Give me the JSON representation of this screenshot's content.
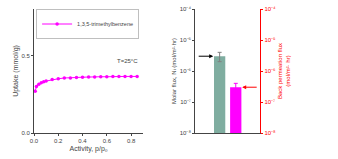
{
  "chart_data": [
    {
      "type": "line",
      "x": [
        0.01,
        0.02,
        0.04,
        0.06,
        0.08,
        0.1,
        0.15,
        0.2,
        0.25,
        0.3,
        0.35,
        0.4,
        0.45,
        0.5,
        0.55,
        0.6,
        0.65,
        0.7,
        0.75,
        0.8,
        0.85
      ],
      "series": [
        {
          "name": "1,3,5-trimethylbenzene",
          "color": "#FF00FF",
          "marker": "circle",
          "values": [
            0.27,
            0.3,
            0.315,
            0.325,
            0.33,
            0.335,
            0.345,
            0.35,
            0.355,
            0.355,
            0.358,
            0.36,
            0.362,
            0.362,
            0.363,
            0.363,
            0.365,
            0.365,
            0.365,
            0.365,
            0.365
          ]
        }
      ],
      "xlabel": "Activity, p/p₀",
      "ylabel": "Uptake (mmol/g)",
      "xlim": [
        0,
        0.9
      ],
      "ylim": [
        0.0,
        0.8
      ],
      "xticks": [
        {
          "value": 0,
          "label": "0.0"
        },
        0.2,
        0.4,
        0.6,
        0.8
      ],
      "yticks": [
        {
          "value": 0,
          "label": "0.0"
        },
        0.5
      ],
      "legend": "upper left",
      "grid": false,
      "annotations": [
        "T=25°C"
      ]
    },
    {
      "type": "bar",
      "categories": [
        null,
        null
      ],
      "series": [
        {
          "color": "#7fada0",
          "values": [
            3e-06,
            null
          ],
          "errors": [
            1e-06,
            null
          ]
        },
        {
          "color": "#FF00FF",
          "values": [
            null,
            3e-07
          ],
          "errors": [
            null,
            1e-07
          ],
          "axis": "y2"
        }
      ],
      "ylabel": "Molar flux, Nᵢ (mol/m²·hr)",
      "y2label": "Back permeation flux\n(mol/m²· hr)",
      "log": "y",
      "ylim": [
        1e-08,
        0.0001
      ],
      "yticks": [
        {
          "value": 1e-08,
          "label": "10⁻⁸"
        },
        {
          "value": 1e-07,
          "label": "10⁻⁷"
        },
        {
          "value": 1e-06,
          "label": "10⁻⁶"
        },
        {
          "value": 1e-05,
          "label": "10⁻⁵"
        },
        {
          "value": 0.0001,
          "label": "10⁻⁴"
        }
      ],
      "y2lim": [
        1e-08,
        0.0001
      ],
      "y2ticks": [
        {
          "value": 1e-08,
          "label": "10⁻⁸"
        },
        {
          "value": 1e-07,
          "label": "10⁻⁷"
        },
        {
          "value": 1e-06,
          "label": "10⁻⁶"
        },
        {
          "value": 1e-05,
          "label": "10⁻⁵"
        },
        {
          "value": 0.0001,
          "label": "10⁻⁴"
        }
      ],
      "tick_labels": "y",
      "grid": false
    }
  ]
}
